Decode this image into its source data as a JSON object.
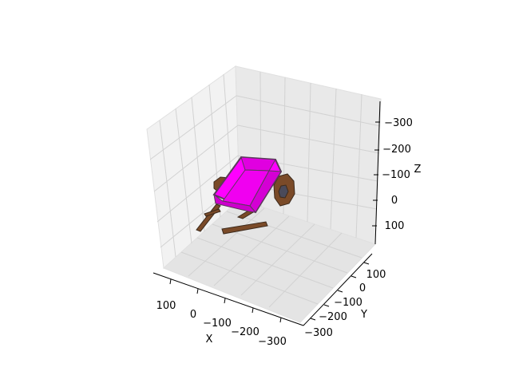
{
  "chart_data": {
    "type": "3d-mesh",
    "title": "",
    "axes": {
      "x": {
        "label": "X",
        "ticks": [
          "100",
          "0",
          "−100",
          "−200",
          "−300"
        ]
      },
      "y": {
        "label": "Y",
        "ticks": [
          "100",
          "0",
          "−100",
          "−200",
          "−300"
        ]
      },
      "z": {
        "label": "Z",
        "ticks": [
          "−300",
          "−200",
          "−100",
          "0",
          "100"
        ]
      }
    },
    "grid": true,
    "pane_color": "#f2f2f2",
    "objects": [
      {
        "name": "cart-body",
        "color": "#ff00ff",
        "edge_color": "#5a3a5a"
      },
      {
        "name": "wheel",
        "color": "#7a4a28"
      },
      {
        "name": "handle-bar",
        "color": "#7a4a28"
      },
      {
        "name": "loose-plank",
        "color": "#7a4a28"
      }
    ]
  }
}
